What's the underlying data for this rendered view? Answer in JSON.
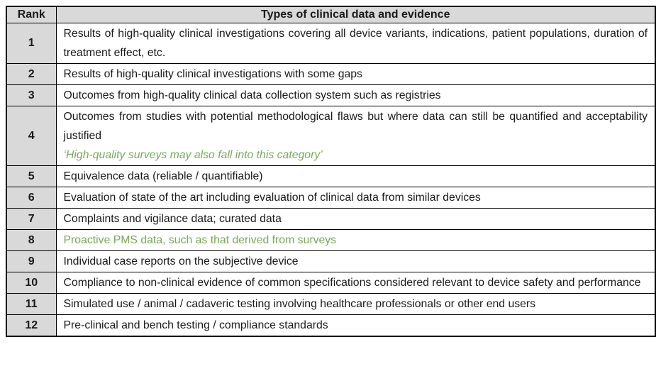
{
  "table": {
    "header": {
      "rank": "Rank",
      "title": "Types of clinical data and evidence"
    },
    "rows": [
      {
        "rank": "1",
        "text": "Results of high-quality clinical investigations covering all device variants, indications, patient populations, duration of treatment effect, etc.",
        "justify": true
      },
      {
        "rank": "2",
        "text": "Results of high-quality clinical investigations with some gaps"
      },
      {
        "rank": "3",
        "text": "Outcomes from high-quality clinical data collection system such as registries"
      },
      {
        "rank": "4",
        "text": "Outcomes from studies with potential methodological flaws but where data can still be quantified and acceptability justified",
        "justify": true,
        "note": "‘High-quality surveys may also fall into this category’"
      },
      {
        "rank": "5",
        "text": "Equivalence data (reliable / quantifiable)"
      },
      {
        "rank": "6",
        "text": "Evaluation of state of the art including evaluation of clinical data from similar devices"
      },
      {
        "rank": "7",
        "text": "Complaints and vigilance data; curated data"
      },
      {
        "rank": "8",
        "text": "Proactive PMS data, such as that derived from surveys",
        "green": true
      },
      {
        "rank": "9",
        "text": "Individual case reports on the subjective device"
      },
      {
        "rank": "10",
        "text": "Compliance to non-clinical evidence of common specifications considered relevant to device safety and performance",
        "justify": true
      },
      {
        "rank": "11",
        "text": "Simulated use / animal / cadaveric testing involving healthcare professionals or other end users",
        "justify": true
      },
      {
        "rank": "12",
        "text": "Pre-clinical and bench testing / compliance standards"
      }
    ],
    "colors": {
      "header_bg": "#d9d9d9",
      "rank_bg": "#d9d9d9",
      "green_text": "#76ab56",
      "border": "#000000"
    }
  }
}
